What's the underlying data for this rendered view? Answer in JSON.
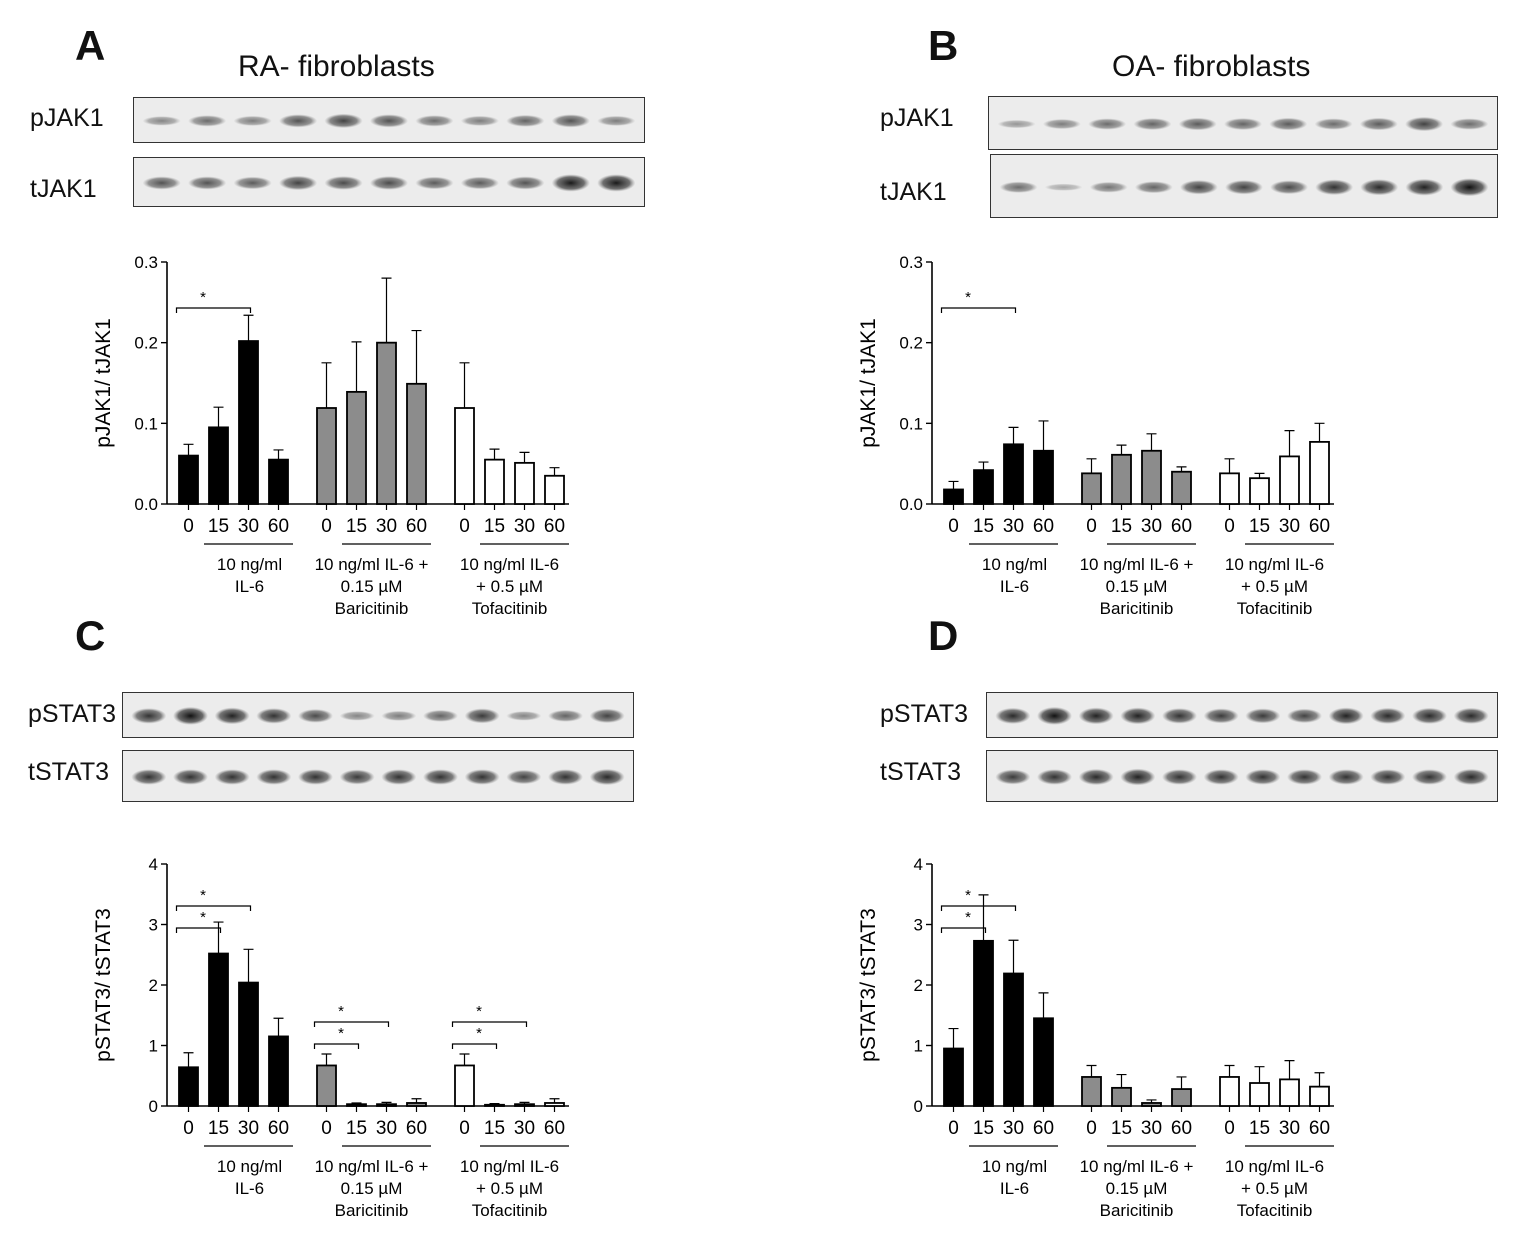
{
  "panels": [
    {
      "letter": "A",
      "title": "RA- fibroblasts",
      "blots": [
        {
          "label": "pJAK1",
          "band_intensity": [
            0.3,
            0.45,
            0.35,
            0.6,
            0.7,
            0.6,
            0.45,
            0.35,
            0.5,
            0.6,
            0.35
          ]
        },
        {
          "label": "tJAK1",
          "band_intensity": [
            0.6,
            0.6,
            0.55,
            0.7,
            0.65,
            0.65,
            0.55,
            0.55,
            0.6,
            0.95,
            0.95
          ]
        }
      ]
    },
    {
      "letter": "B",
      "title": "OA- fibroblasts",
      "blots": [
        {
          "label": "pJAK1",
          "band_intensity": [
            0.2,
            0.35,
            0.45,
            0.5,
            0.55,
            0.5,
            0.55,
            0.45,
            0.55,
            0.7,
            0.45
          ]
        },
        {
          "label": "tJAK1",
          "band_intensity": [
            0.45,
            0.1,
            0.4,
            0.5,
            0.7,
            0.7,
            0.65,
            0.8,
            0.85,
            0.9,
            1.0
          ]
        }
      ]
    },
    {
      "letter": "C",
      "title": "",
      "blots": [
        {
          "label": "pSTAT3",
          "band_intensity": [
            0.8,
            1.0,
            0.9,
            0.8,
            0.65,
            0.3,
            0.35,
            0.5,
            0.75,
            0.3,
            0.5,
            0.7
          ]
        },
        {
          "label": "tSTAT3",
          "band_intensity": [
            0.8,
            0.8,
            0.8,
            0.8,
            0.8,
            0.75,
            0.8,
            0.8,
            0.8,
            0.7,
            0.8,
            0.85
          ]
        }
      ]
    },
    {
      "letter": "D",
      "title": "",
      "blots": [
        {
          "label": "pSTAT3",
          "band_intensity": [
            0.85,
            1.0,
            0.9,
            0.9,
            0.8,
            0.75,
            0.75,
            0.7,
            0.9,
            0.85,
            0.85,
            0.85
          ]
        },
        {
          "label": "tSTAT3",
          "band_intensity": [
            0.75,
            0.8,
            0.85,
            0.9,
            0.8,
            0.8,
            0.8,
            0.8,
            0.8,
            0.8,
            0.8,
            0.85
          ]
        }
      ]
    }
  ],
  "colors": {
    "il6": "#000000",
    "baricitinib": "#8c8c8c",
    "tofacitinib": "#ffffff"
  },
  "chart_data": [
    {
      "id": "A",
      "type": "bar",
      "ylabel": "pJAK1/ tJAK1",
      "ylim": [
        0,
        0.3
      ],
      "yticks": [
        "0.0",
        "0.1",
        "0.2",
        "0.3"
      ],
      "tick_values": [
        0,
        0.1,
        0.2,
        0.3
      ],
      "categories": [
        "0",
        "15",
        "30",
        "60"
      ],
      "series": [
        {
          "name": "10 ng/ml IL-6",
          "label_lines": [
            "10 ng/ml",
            "IL-6"
          ],
          "values": [
            0.06,
            0.095,
            0.202,
            0.055
          ],
          "errors": [
            0.014,
            0.025,
            0.032,
            0.012
          ]
        },
        {
          "name": "10 ng/ml IL-6 + 0.15 µM Baricitinib",
          "label_lines": [
            "10 ng/ml IL-6 +",
            "0.15 µM",
            "Baricitinib"
          ],
          "values": [
            0.119,
            0.139,
            0.2,
            0.149
          ],
          "errors": [
            0.056,
            0.062,
            0.08,
            0.066
          ]
        },
        {
          "name": "10 ng/ml IL-6 + 0.5 µM Tofacitinib",
          "label_lines": [
            "10 ng/ml IL-6",
            "+ 0.5 µM",
            "Tofacitinib"
          ],
          "values": [
            0.119,
            0.055,
            0.051,
            0.035
          ],
          "errors": [
            0.056,
            0.013,
            0.013,
            0.01
          ]
        }
      ],
      "significance": [
        {
          "group": 0,
          "from": 0,
          "to": 2,
          "label": "*"
        }
      ]
    },
    {
      "id": "B",
      "type": "bar",
      "ylabel": "pJAK1/ tJAK1",
      "ylim": [
        0,
        0.3
      ],
      "yticks": [
        "0.0",
        "0.1",
        "0.2",
        "0.3"
      ],
      "tick_values": [
        0,
        0.1,
        0.2,
        0.3
      ],
      "categories": [
        "0",
        "15",
        "30",
        "60"
      ],
      "series": [
        {
          "name": "10 ng/ml IL-6",
          "label_lines": [
            "10 ng/ml",
            "IL-6"
          ],
          "values": [
            0.018,
            0.042,
            0.074,
            0.066
          ],
          "errors": [
            0.01,
            0.01,
            0.021,
            0.037
          ]
        },
        {
          "name": "10 ng/ml IL-6 + 0.15 µM Baricitinib",
          "label_lines": [
            "10 ng/ml IL-6 +",
            "0.15 µM",
            "Baricitinib"
          ],
          "values": [
            0.038,
            0.061,
            0.066,
            0.04
          ],
          "errors": [
            0.018,
            0.012,
            0.021,
            0.006
          ]
        },
        {
          "name": "10 ng/ml IL-6 + 0.5 µM Tofacitinib",
          "label_lines": [
            "10 ng/ml IL-6",
            "+ 0.5 µM",
            "Tofacitinib"
          ],
          "values": [
            0.038,
            0.032,
            0.059,
            0.077
          ],
          "errors": [
            0.018,
            0.006,
            0.032,
            0.023
          ]
        }
      ],
      "significance": [
        {
          "group": 0,
          "from": 0,
          "to": 2,
          "label": "*"
        }
      ]
    },
    {
      "id": "C",
      "type": "bar",
      "ylabel": "pSTAT3/ tSTAT3",
      "ylim": [
        0,
        4
      ],
      "yticks": [
        "0",
        "1",
        "2",
        "3",
        "4"
      ],
      "tick_values": [
        0,
        1,
        2,
        3,
        4
      ],
      "categories": [
        "0",
        "15",
        "30",
        "60"
      ],
      "series": [
        {
          "name": "10 ng/ml IL-6",
          "label_lines": [
            "10 ng/ml",
            "IL-6"
          ],
          "values": [
            0.64,
            2.52,
            2.04,
            1.15
          ],
          "errors": [
            0.24,
            0.52,
            0.55,
            0.3
          ]
        },
        {
          "name": "10 ng/ml IL-6 + 0.15 µM Baricitinib",
          "label_lines": [
            "10 ng/ml IL-6 +",
            "0.15 µM",
            "Baricitinib"
          ],
          "values": [
            0.67,
            0.03,
            0.03,
            0.05
          ],
          "errors": [
            0.19,
            0.02,
            0.03,
            0.07
          ]
        },
        {
          "name": "10 ng/ml IL-6 + 0.5 µM Tofacitinib",
          "label_lines": [
            "10 ng/ml IL-6",
            "+ 0.5 µM",
            "Tofacitinib"
          ],
          "values": [
            0.67,
            0.02,
            0.03,
            0.05
          ],
          "errors": [
            0.19,
            0.02,
            0.03,
            0.07
          ]
        }
      ],
      "significance": [
        {
          "group": 0,
          "from": 0,
          "to": 1,
          "label": "*"
        },
        {
          "group": 0,
          "from": 0,
          "to": 2,
          "label": "*"
        },
        {
          "group": 1,
          "from": 0,
          "to": 1,
          "label": "*"
        },
        {
          "group": 1,
          "from": 0,
          "to": 2,
          "label": "*"
        },
        {
          "group": 2,
          "from": 0,
          "to": 1,
          "label": "*"
        },
        {
          "group": 2,
          "from": 0,
          "to": 2,
          "label": "*"
        }
      ]
    },
    {
      "id": "D",
      "type": "bar",
      "ylabel": "pSTAT3/ tSTAT3",
      "ylim": [
        0,
        4
      ],
      "yticks": [
        "0",
        "1",
        "2",
        "3",
        "4"
      ],
      "tick_values": [
        0,
        1,
        2,
        3,
        4
      ],
      "categories": [
        "0",
        "15",
        "30",
        "60"
      ],
      "series": [
        {
          "name": "10 ng/ml IL-6",
          "label_lines": [
            "10 ng/ml",
            "IL-6"
          ],
          "values": [
            0.95,
            2.73,
            2.19,
            1.45
          ],
          "errors": [
            0.33,
            0.76,
            0.55,
            0.42
          ]
        },
        {
          "name": "10 ng/ml IL-6 + 0.15 µM Baricitinib",
          "label_lines": [
            "10 ng/ml IL-6 +",
            "0.15 µM",
            "Baricitinib"
          ],
          "values": [
            0.48,
            0.3,
            0.05,
            0.28
          ],
          "errors": [
            0.19,
            0.22,
            0.05,
            0.2
          ]
        },
        {
          "name": "10 ng/ml IL-6 + 0.5 µM Tofacitinib",
          "label_lines": [
            "10 ng/ml IL-6",
            "+ 0.5 µM",
            "Tofacitinib"
          ],
          "values": [
            0.48,
            0.38,
            0.44,
            0.32
          ],
          "errors": [
            0.19,
            0.27,
            0.31,
            0.23
          ]
        }
      ],
      "significance": [
        {
          "group": 0,
          "from": 0,
          "to": 1,
          "label": "*"
        },
        {
          "group": 0,
          "from": 0,
          "to": 2,
          "label": "*"
        }
      ]
    }
  ]
}
